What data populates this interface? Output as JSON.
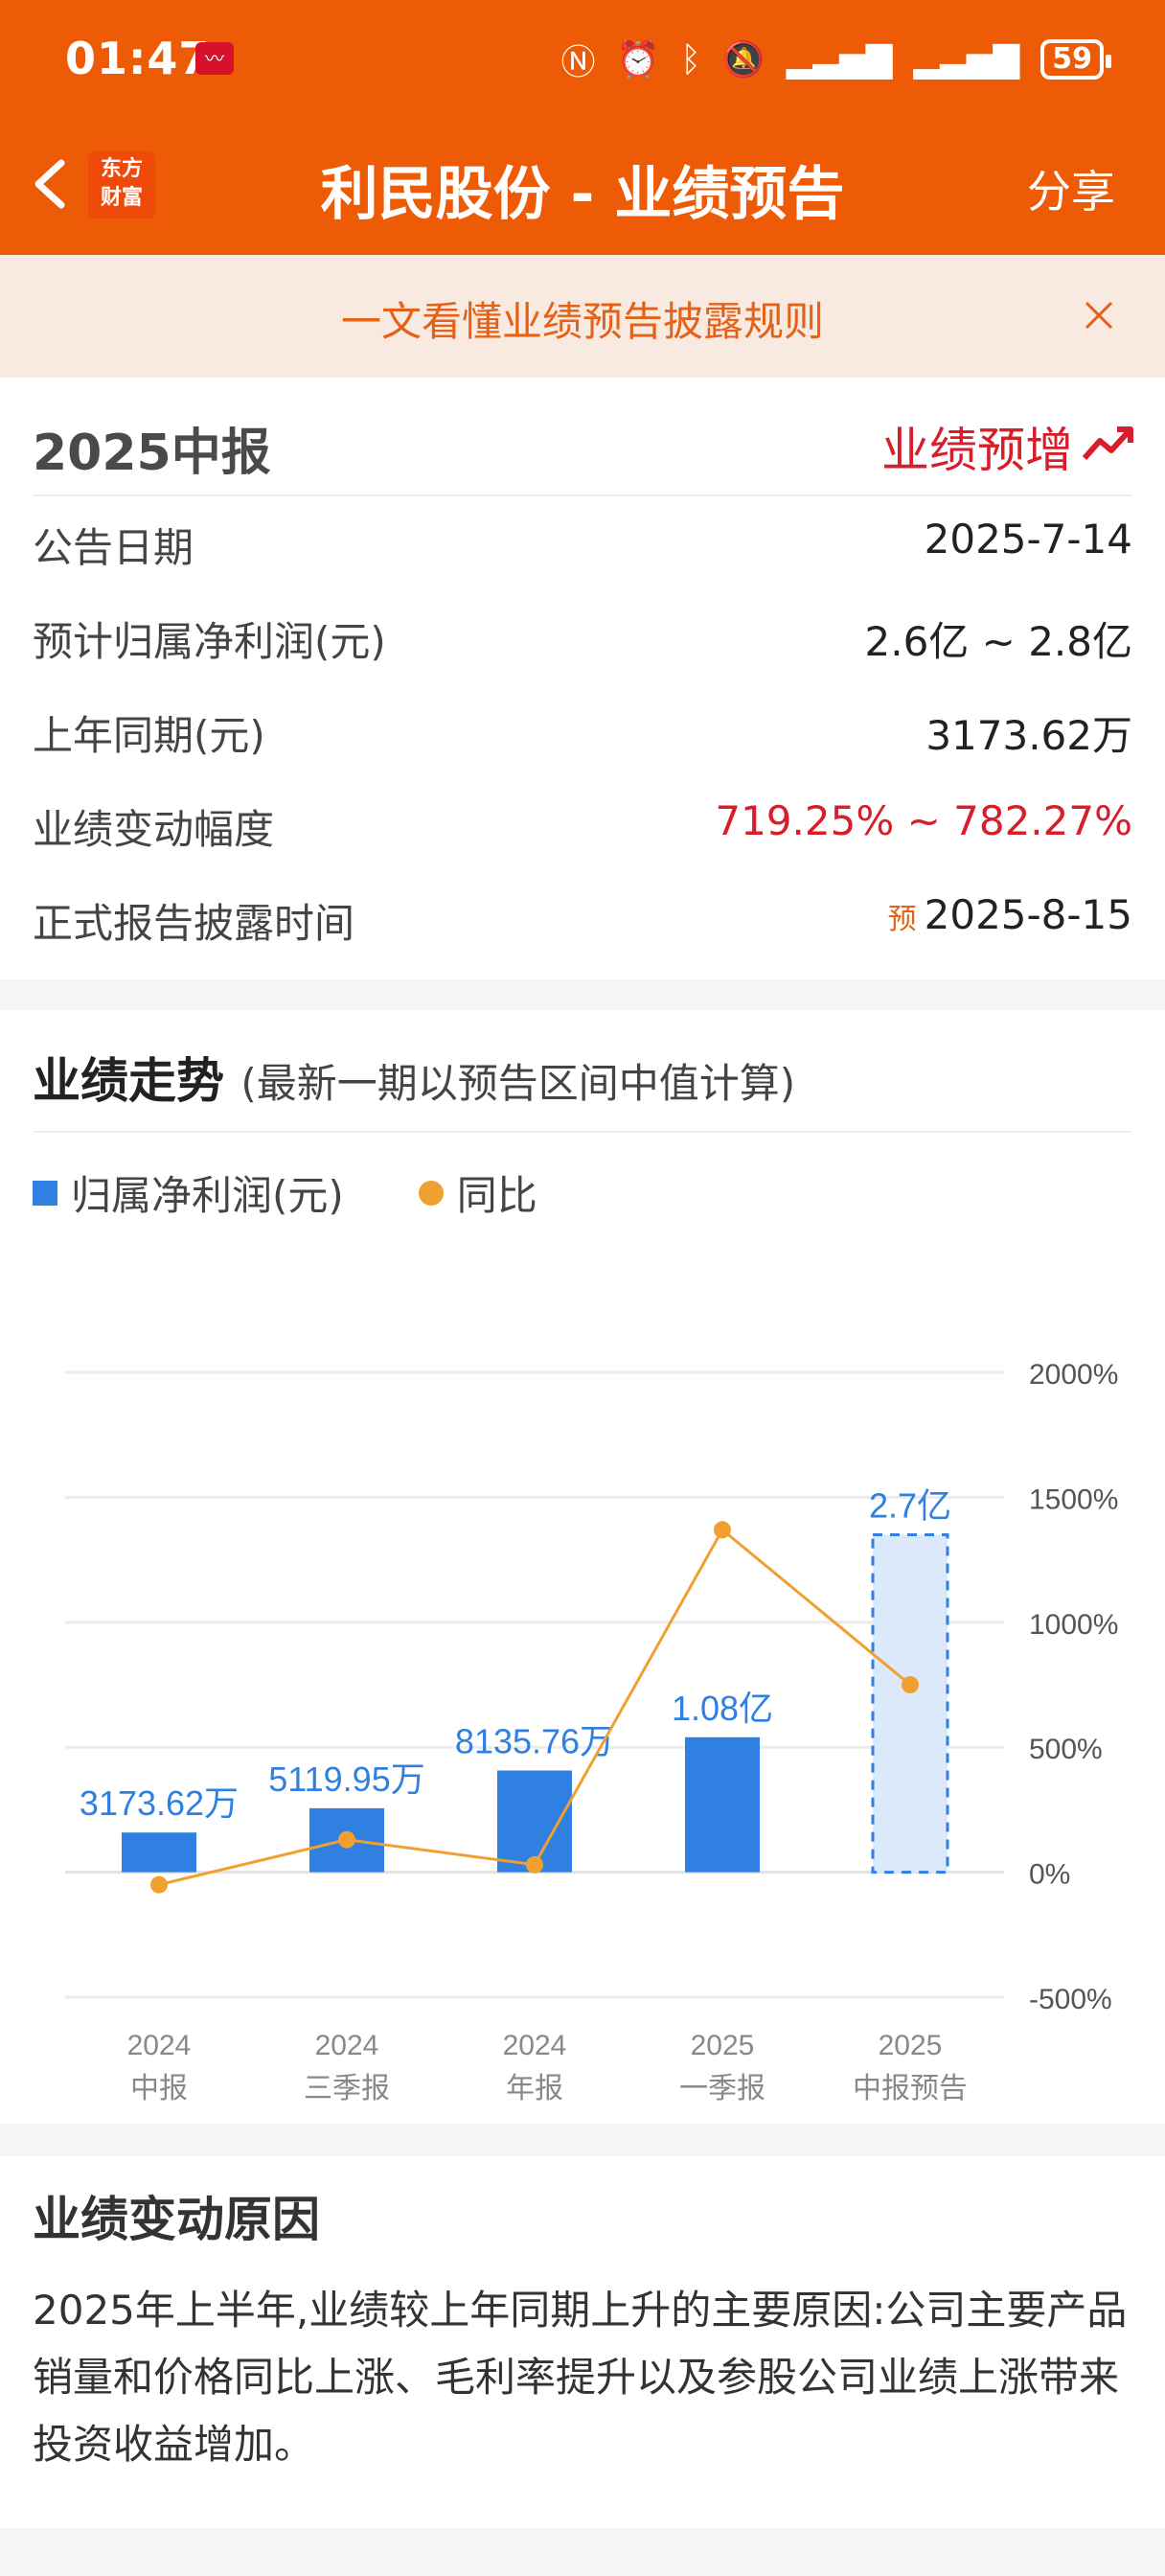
{
  "status_bar": {
    "time": "01:47",
    "battery": "59",
    "icons": [
      "nfc-icon",
      "alarm-icon",
      "bluetooth-icon",
      "mute-icon",
      "signal-icon",
      "signal-icon"
    ]
  },
  "nav": {
    "logo_line1": "东方",
    "logo_line2": "财富",
    "title": "利民股份 - 业绩预告",
    "share_label": "分享"
  },
  "notice": {
    "text": "一文看懂业绩预告披露规则"
  },
  "forecast": {
    "report_title": "2025中报",
    "trend_label": "业绩预增",
    "rows": [
      {
        "label": "公告日期",
        "value": "2025-7-14",
        "tag": ""
      },
      {
        "label": "预计归属净利润(元)",
        "value": "2.6亿 ~ 2.8亿",
        "tag": ""
      },
      {
        "label": "上年同期(元)",
        "value": "3173.62万",
        "tag": ""
      },
      {
        "label": "业绩变动幅度",
        "value": "719.25% ~ 782.27%",
        "tag": ""
      },
      {
        "label": "正式报告披露时间",
        "value": "2025-8-15",
        "tag": "预"
      }
    ]
  },
  "trend": {
    "title": "业绩走势",
    "subtitle": "(最新一期以预告区间中值计算)",
    "legend_bar": "归属净利润(元)",
    "legend_line": "同比"
  },
  "chart_data": {
    "type": "bar",
    "categories": [
      [
        "2024",
        "中报"
      ],
      [
        "2024",
        "三季报"
      ],
      [
        "2024",
        "年报"
      ],
      [
        "2025",
        "一季报"
      ],
      [
        "2025",
        "中报预告"
      ]
    ],
    "series": [
      {
        "name": "归属净利润(元)",
        "type": "bar",
        "values": [
          31736200,
          51199500,
          81357600,
          108000000,
          270000000
        ],
        "labels": [
          "3173.62万",
          "5119.95万",
          "8135.76万",
          "1.08亿",
          "2.7亿"
        ]
      },
      {
        "name": "同比",
        "type": "line",
        "axis": "right",
        "values": [
          -50,
          130,
          30,
          1370,
          750
        ]
      }
    ],
    "forecast_index": 4,
    "y_right_ticks": [
      "2000%",
      "1500%",
      "1000%",
      "500%",
      "0%",
      "-500%"
    ],
    "y_right_range": [
      -500,
      2000
    ],
    "grid": true,
    "legend": "top-left",
    "colors": {
      "bar": "#2f80e0",
      "line": "#f0a030",
      "forecast_fill": "#dce9fa"
    }
  },
  "reason": {
    "title": "业绩变动原因",
    "text": "2025年上半年,业绩较上年同期上升的主要原因:公司主要产品销量和价格同比上涨、毛利率提升以及参股公司业绩上涨带来投资收益增加。"
  }
}
